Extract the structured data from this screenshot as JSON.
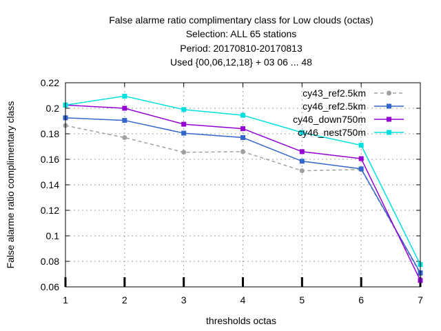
{
  "chart_data": {
    "type": "line",
    "title": [
      "False alarme ratio complimentary class  for Low clouds (octas)",
      "Selection: ALL     65 stations",
      "Period: 20170810-20170813",
      "Used {00,06,12,18} + 03 06 ... 48"
    ],
    "xlabel": "thresholds octas",
    "ylabel": "False alarme ratio complimentary class",
    "x": [
      1,
      2,
      3,
      4,
      5,
      6,
      7
    ],
    "xlim": [
      1,
      7
    ],
    "ylim": [
      0.06,
      0.22
    ],
    "xticks": [
      "1",
      "2",
      "3",
      "4",
      "5",
      "6",
      "7"
    ],
    "yticks": [
      "0.06",
      "0.08",
      "0.1",
      "0.12",
      "0.14",
      "0.16",
      "0.18",
      "0.2",
      "0.22"
    ],
    "grid": true,
    "legend_position": "top-right",
    "series": [
      {
        "name": "cy43_ref2.5km",
        "color": "#a0a0a0",
        "dashed": true,
        "marker": "circle",
        "values": [
          0.1865,
          0.177,
          0.1655,
          0.166,
          0.151,
          0.152,
          0.07
        ]
      },
      {
        "name": "cy46_ref2.5km",
        "color": "#3366cc",
        "dashed": false,
        "marker": "square",
        "values": [
          0.1925,
          0.1905,
          0.1805,
          0.177,
          0.1585,
          0.1525,
          0.071
        ]
      },
      {
        "name": "cy46_down750m",
        "color": "#9400d3",
        "dashed": false,
        "marker": "square",
        "values": [
          0.2025,
          0.2,
          0.1875,
          0.184,
          0.166,
          0.1605,
          0.065
        ]
      },
      {
        "name": "cy46_nest750m",
        "color": "#00e0e0",
        "dashed": false,
        "marker": "square",
        "values": [
          0.2025,
          0.2095,
          0.199,
          0.1945,
          0.181,
          0.171,
          0.0775
        ]
      }
    ]
  }
}
